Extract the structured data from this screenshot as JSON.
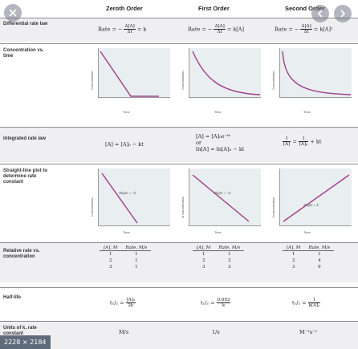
{
  "headers": {
    "zeroth": "Zeroth Order",
    "first": "First Order",
    "second": "Second Order"
  },
  "rows": {
    "differential": "Differential rate law",
    "concentration": "Concentration vs. time",
    "integrated": "Integrated rate law",
    "straightline": "Straight-line plot to determine rate constant",
    "relative": "Relative rate vs. concentration",
    "halflife": "Half-life",
    "units": "Units of k, rate constant"
  },
  "rate_law": {
    "prefix": "Rate = −",
    "num": "Δ[A]",
    "den": "Δt",
    "zeroth": "= k",
    "first": "= k[A]",
    "second": "= k[A]²"
  },
  "integrated": {
    "zeroth": "[A] = [A]₀ − kt",
    "first_a": "[A] = [A]₀e⁻ᵏᵗ",
    "first_or": "or",
    "first_b": "ln[A] = ln[A]₀ − kt",
    "second_pre": "1",
    "second_den": "[A]",
    "second_mid": "= ",
    "second_den0": "[A]₀",
    "second_post": "+ kt"
  },
  "plots": {
    "time": "Time",
    "concentration": "Concentration",
    "ln_concentration": "ln concentration",
    "inv_concentration": "1/concentration",
    "slope_zeroth": "Slope = −k",
    "slope_first": "Slope = −k",
    "slope_second": "Slope = k"
  },
  "rate_tables": {
    "col_a": "[A], M",
    "col_rate": "Rate, M/s",
    "conc": [
      "1",
      "2",
      "3"
    ],
    "zeroth": [
      "1",
      "1",
      "1"
    ],
    "first": [
      "1",
      "2",
      "3"
    ],
    "second": [
      "1",
      "4",
      "9"
    ]
  },
  "halflife": {
    "zeroth_num": "[A]₀",
    "zeroth_den": "2k",
    "first_num": "0.693",
    "first_den": "k",
    "second_num": "1",
    "second_den": "k[A]₀",
    "t_label": "t₁/₂ ="
  },
  "units": {
    "zeroth": "M/s",
    "first": "1/s",
    "second": "M⁻¹s⁻¹"
  },
  "overlay": {
    "badge": "2228 × 2184"
  },
  "colors": {
    "curve": "#a0408a",
    "plot_bg": "#e9eef0",
    "row_shade": "#efeff2"
  }
}
